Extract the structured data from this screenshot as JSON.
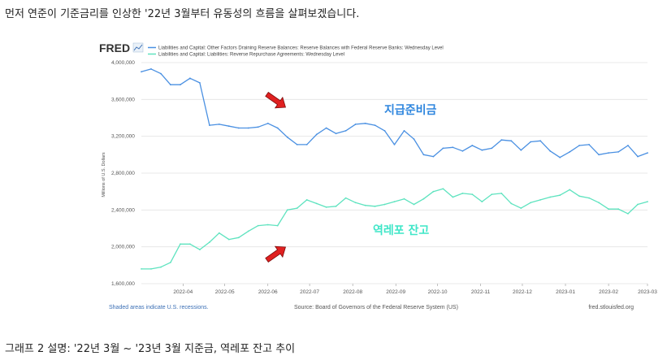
{
  "intro_text": "먼저 연준이 기준금리를 인상한 '22년 3월부터 유동성의 흐름을 살펴보겠습니다.",
  "caption_text": "그래프 2 설명: '22년 3월 ~ '23년 3월 지준금, 역레포 잔고 추이",
  "fred": {
    "logo": "FRED",
    "footer_left": "Shaded areas indicate U.S. recessions.",
    "footer_center": "Source: Board of Governors of the Federal Reserve System (US)",
    "footer_right": "fred.stlouisfed.org"
  },
  "colors": {
    "reserves": "#4a90e2",
    "rrp": "#5ee3bf",
    "arrow": "#e02020",
    "annot_reserves": "#2e86de",
    "annot_rrp": "#3fe6c8"
  },
  "chart_data": {
    "type": "line",
    "ylabel": "Millions of U.S. Dollars",
    "ylim": [
      1600000,
      4000000
    ],
    "yticks": [
      1600000,
      2000000,
      2400000,
      2800000,
      3200000,
      3600000,
      4000000
    ],
    "ytick_labels": [
      "1,600,000",
      "2,000,000",
      "2,400,000",
      "2,800,000",
      "3,200,000",
      "3,600,000",
      "4,000,000"
    ],
    "xlim": [
      "2022-03-02",
      "2023-03-01"
    ],
    "xticks": [
      "2022-04-01",
      "2022-05-01",
      "2022-06-01",
      "2022-07-01",
      "2022-08-01",
      "2022-09-01",
      "2022-10-01",
      "2022-11-01",
      "2022-12-01",
      "2023-01-01",
      "2023-02-01",
      "2023-03-01"
    ],
    "xtick_labels": [
      "2022-04",
      "2022-05",
      "2022-06",
      "2022-07",
      "2022-08",
      "2022-09",
      "2022-10",
      "2022-11",
      "2022-12",
      "2023-01",
      "2023-02",
      "2023-03"
    ],
    "grid": true,
    "legend_position": "top-left",
    "annotations": [
      {
        "text": "지급준비금",
        "series": "reserves"
      },
      {
        "text": "역레포 잔고",
        "series": "rrp"
      }
    ],
    "series": [
      {
        "name": "Liabilities and Capital: Other Factors Draining Reserve Balances: Reserve Balances with Federal Reserve Banks: Wednesday Level",
        "key": "reserves",
        "x": [
          "2022-03-02",
          "2022-03-09",
          "2022-03-16",
          "2022-03-23",
          "2022-03-30",
          "2022-04-06",
          "2022-04-13",
          "2022-04-20",
          "2022-04-27",
          "2022-05-04",
          "2022-05-11",
          "2022-05-18",
          "2022-05-25",
          "2022-06-01",
          "2022-06-08",
          "2022-06-15",
          "2022-06-22",
          "2022-06-29",
          "2022-07-06",
          "2022-07-13",
          "2022-07-20",
          "2022-07-27",
          "2022-08-03",
          "2022-08-10",
          "2022-08-17",
          "2022-08-24",
          "2022-08-31",
          "2022-09-07",
          "2022-09-14",
          "2022-09-21",
          "2022-09-28",
          "2022-10-05",
          "2022-10-12",
          "2022-10-19",
          "2022-10-26",
          "2022-11-02",
          "2022-11-09",
          "2022-11-16",
          "2022-11-23",
          "2022-11-30",
          "2022-12-07",
          "2022-12-14",
          "2022-12-21",
          "2022-12-28",
          "2023-01-04",
          "2023-01-11",
          "2023-01-18",
          "2023-01-25",
          "2023-02-01",
          "2023-02-08",
          "2023-02-15",
          "2023-02-22",
          "2023-03-01"
        ],
        "values": [
          3900000,
          3930000,
          3880000,
          3760000,
          3760000,
          3830000,
          3780000,
          3320000,
          3330000,
          3310000,
          3290000,
          3290000,
          3300000,
          3340000,
          3290000,
          3190000,
          3110000,
          3110000,
          3220000,
          3290000,
          3230000,
          3260000,
          3330000,
          3340000,
          3320000,
          3260000,
          3110000,
          3260000,
          3170000,
          3000000,
          2980000,
          3070000,
          3080000,
          3040000,
          3100000,
          3050000,
          3070000,
          3160000,
          3150000,
          3050000,
          3140000,
          3150000,
          3040000,
          2970000,
          3030000,
          3100000,
          3110000,
          3000000,
          3020000,
          3030000,
          3100000,
          2980000,
          3020000
        ]
      },
      {
        "name": "Liabilities and Capital: Liabilities: Reverse Repurchase Agreements: Wednesday Level",
        "key": "rrp",
        "x": [
          "2022-03-02",
          "2022-03-09",
          "2022-03-16",
          "2022-03-23",
          "2022-03-30",
          "2022-04-06",
          "2022-04-13",
          "2022-04-20",
          "2022-04-27",
          "2022-05-04",
          "2022-05-11",
          "2022-05-18",
          "2022-05-25",
          "2022-06-01",
          "2022-06-08",
          "2022-06-15",
          "2022-06-22",
          "2022-06-29",
          "2022-07-06",
          "2022-07-13",
          "2022-07-20",
          "2022-07-27",
          "2022-08-03",
          "2022-08-10",
          "2022-08-17",
          "2022-08-24",
          "2022-08-31",
          "2022-09-07",
          "2022-09-14",
          "2022-09-21",
          "2022-09-28",
          "2022-10-05",
          "2022-10-12",
          "2022-10-19",
          "2022-10-26",
          "2022-11-02",
          "2022-11-09",
          "2022-11-16",
          "2022-11-23",
          "2022-11-30",
          "2022-12-07",
          "2022-12-14",
          "2022-12-21",
          "2022-12-28",
          "2023-01-04",
          "2023-01-11",
          "2023-01-18",
          "2023-01-25",
          "2023-02-01",
          "2023-02-08",
          "2023-02-15",
          "2023-02-22",
          "2023-03-01"
        ],
        "values": [
          1760000,
          1760000,
          1780000,
          1830000,
          2030000,
          2030000,
          1970000,
          2050000,
          2150000,
          2080000,
          2100000,
          2170000,
          2230000,
          2240000,
          2230000,
          2400000,
          2420000,
          2510000,
          2470000,
          2430000,
          2440000,
          2530000,
          2480000,
          2450000,
          2440000,
          2460000,
          2490000,
          2520000,
          2460000,
          2520000,
          2600000,
          2630000,
          2540000,
          2580000,
          2570000,
          2490000,
          2570000,
          2580000,
          2470000,
          2420000,
          2480000,
          2510000,
          2540000,
          2560000,
          2620000,
          2550000,
          2530000,
          2480000,
          2410000,
          2410000,
          2360000,
          2460000,
          2490000
        ]
      }
    ]
  }
}
